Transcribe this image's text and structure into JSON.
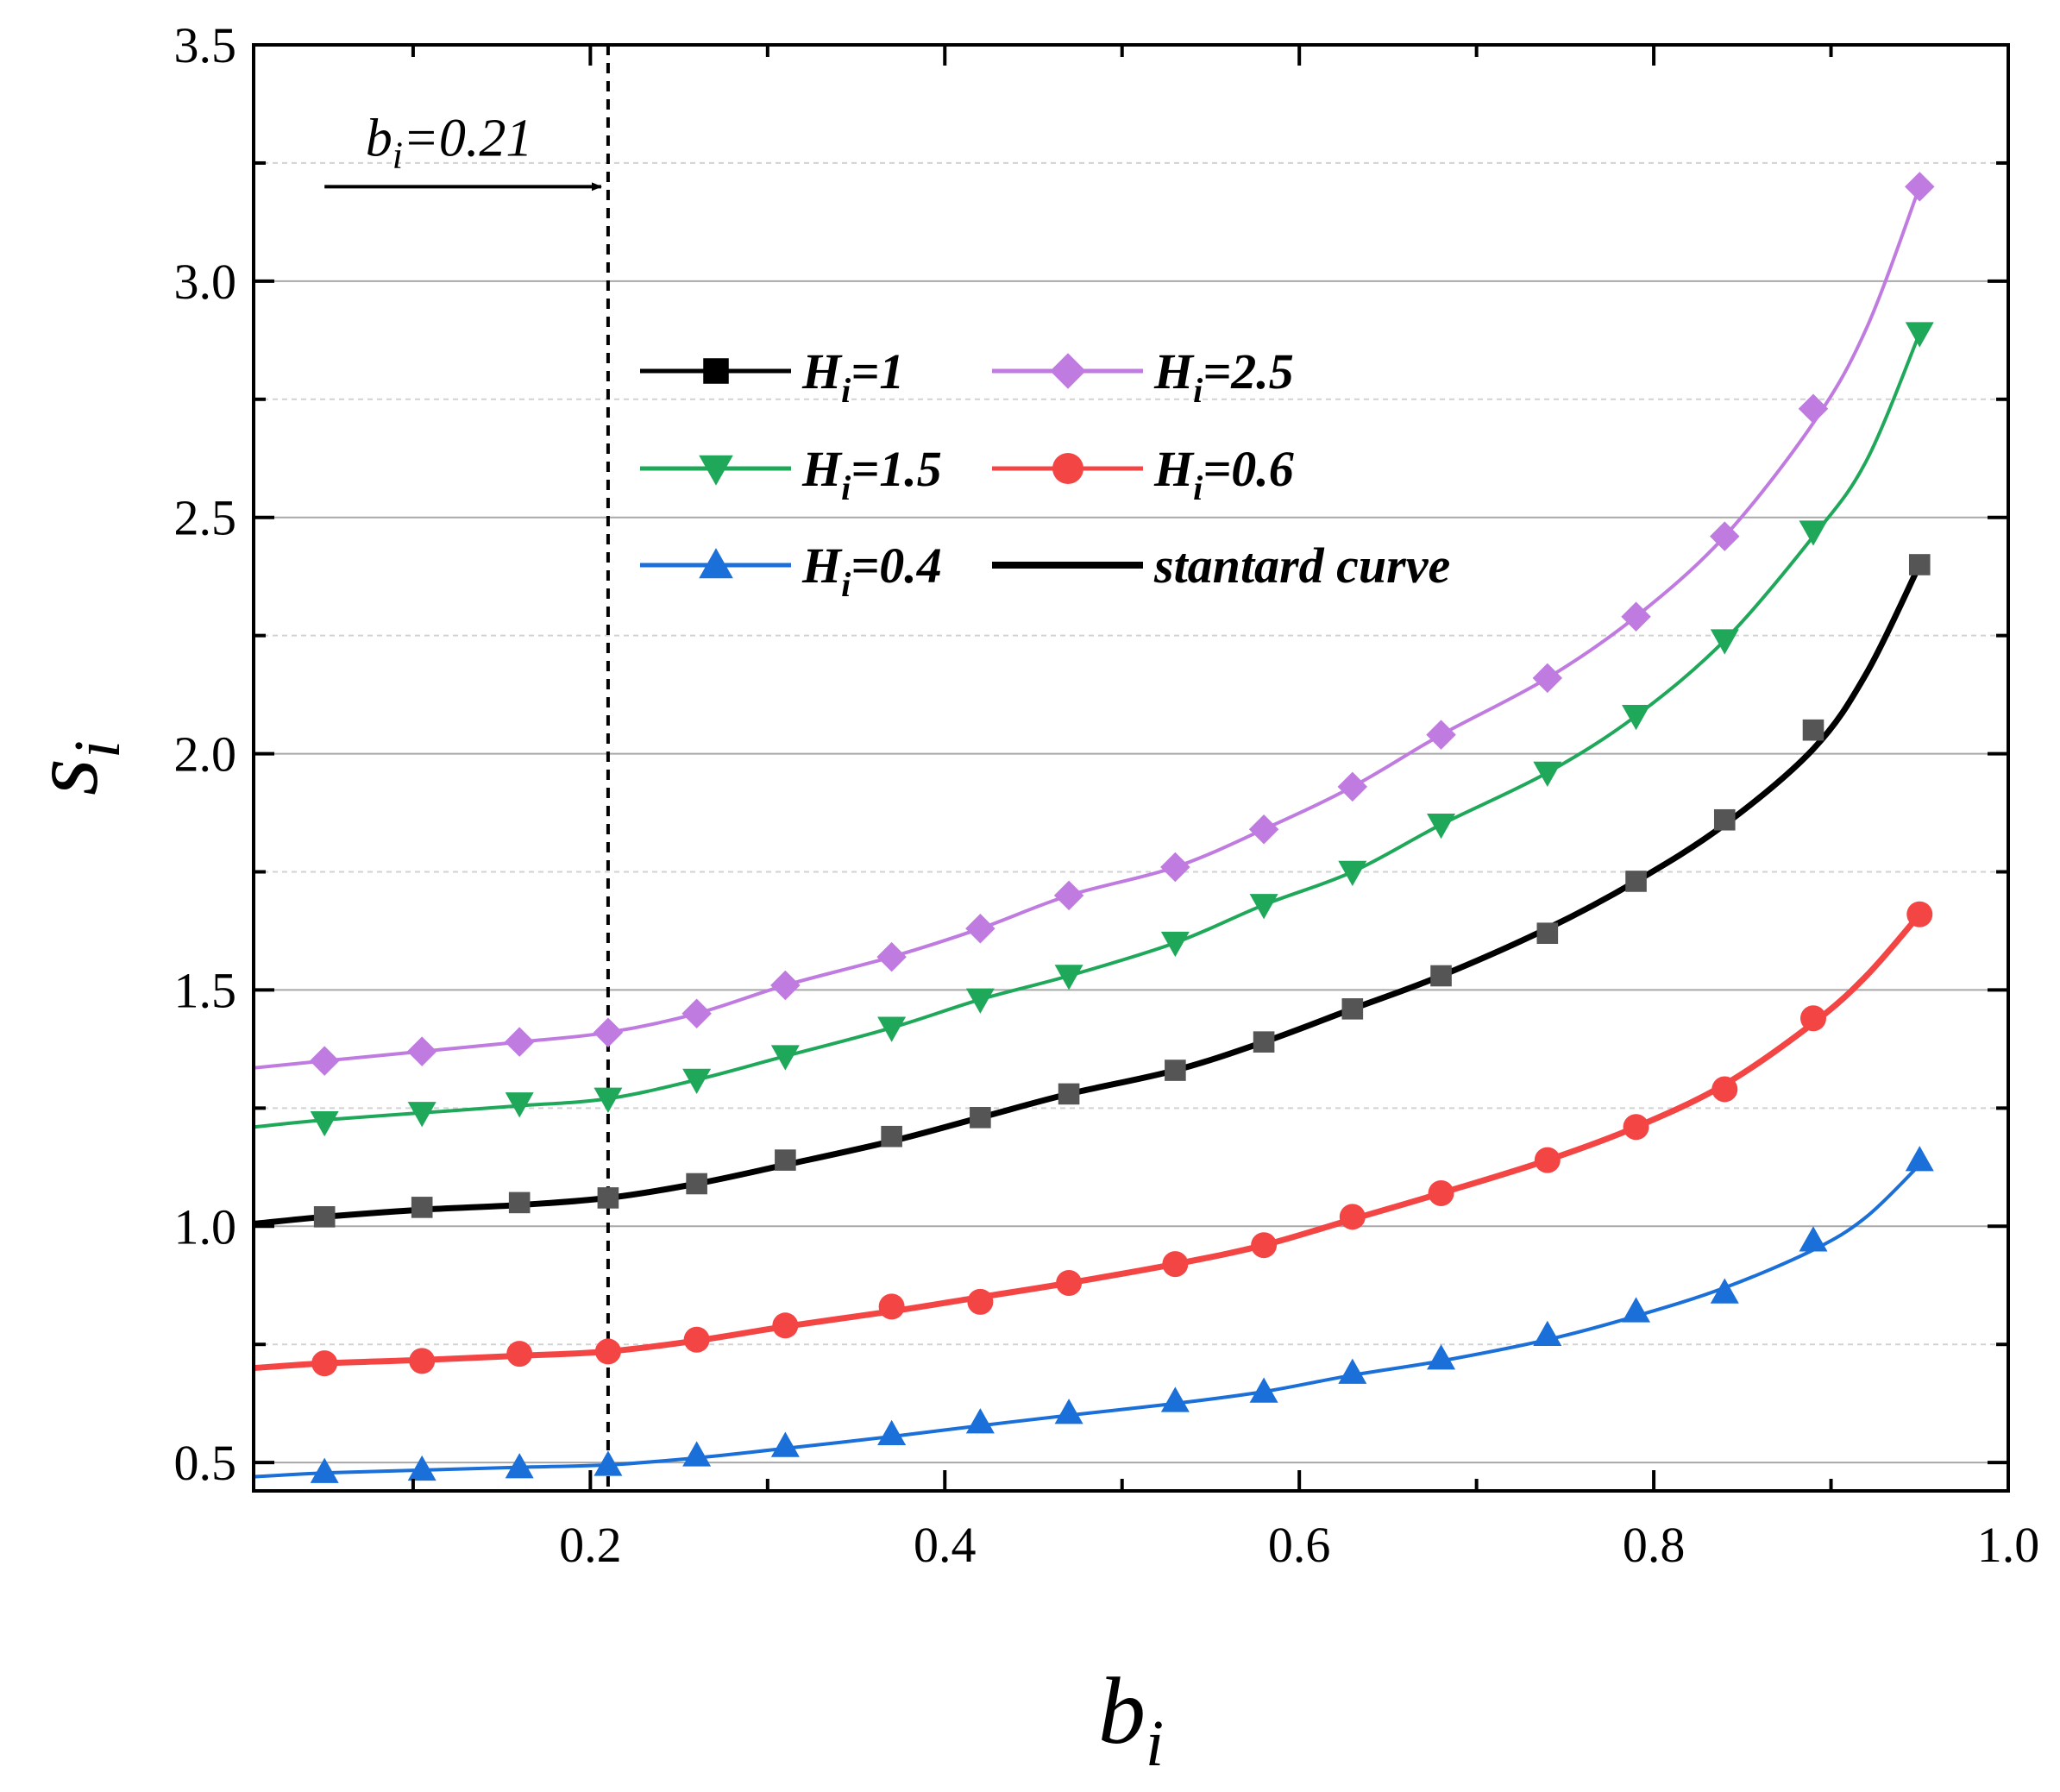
{
  "chart_data": {
    "type": "line",
    "title": "",
    "xlabel": {
      "base": "b",
      "sub": "i"
    },
    "ylabel": {
      "base": "s",
      "sub": "i"
    },
    "xlim": [
      0.01,
      1.0
    ],
    "ylim": [
      0.44,
      3.5
    ],
    "xticks": [
      0.2,
      0.4,
      0.6,
      0.8,
      1.0
    ],
    "xtick_labels": [
      "0.2",
      "0.4",
      "0.6",
      "0.8",
      "1.0"
    ],
    "yticks": [
      0.5,
      1.0,
      1.5,
      2.0,
      2.5,
      3.0,
      3.5
    ],
    "ytick_labels": [
      "0.5",
      "1.0",
      "1.5",
      "2.0",
      "2.5",
      "3.0",
      "3.5"
    ],
    "minor_grid_y": [
      0.75,
      1.25,
      1.75,
      2.25,
      2.75,
      3.25
    ],
    "grid": true,
    "legend_position": "top-center",
    "marker_x": [
      0.05,
      0.105,
      0.16,
      0.21,
      0.26,
      0.31,
      0.37,
      0.42,
      0.47,
      0.53,
      0.58,
      0.63,
      0.68,
      0.74,
      0.79,
      0.84,
      0.89,
      0.95
    ],
    "series": [
      {
        "name": "H_i=1",
        "legend_base": "H",
        "legend_sub": "i",
        "legend_rest": "=1",
        "color": "#555555",
        "marker": "square",
        "values": [
          1.02,
          1.04,
          1.05,
          1.06,
          1.09,
          1.14,
          1.19,
          1.23,
          1.28,
          1.33,
          1.39,
          1.46,
          1.53,
          1.62,
          1.73,
          1.86,
          2.05,
          2.4
        ]
      },
      {
        "name": "H_i=2.5",
        "legend_base": "H",
        "legend_sub": "i",
        "legend_rest": "=2.5",
        "color": "#c07be0",
        "marker": "diamond",
        "values": [
          1.35,
          1.37,
          1.39,
          1.41,
          1.45,
          1.51,
          1.57,
          1.63,
          1.7,
          1.76,
          1.84,
          1.93,
          2.04,
          2.16,
          2.29,
          2.46,
          2.73,
          3.2
        ]
      },
      {
        "name": "H_i=1.5",
        "legend_base": "H",
        "legend_sub": "i",
        "legend_rest": "=1.5",
        "color": "#1fa85a",
        "marker": "triangle-down",
        "values": [
          1.22,
          1.24,
          1.26,
          1.27,
          1.31,
          1.36,
          1.42,
          1.48,
          1.53,
          1.6,
          1.68,
          1.75,
          1.85,
          1.96,
          2.08,
          2.24,
          2.47,
          2.89
        ]
      },
      {
        "name": "H_i=0.6",
        "legend_base": "H",
        "legend_sub": "i",
        "legend_rest": "=0.6",
        "color": "#f44545",
        "marker": "circle",
        "values": [
          0.71,
          0.715,
          0.73,
          0.735,
          0.76,
          0.79,
          0.83,
          0.84,
          0.88,
          0.92,
          0.96,
          1.02,
          1.07,
          1.14,
          1.21,
          1.29,
          1.44,
          1.66
        ]
      },
      {
        "name": "H_i=0.4",
        "legend_base": "H",
        "legend_sub": "i",
        "legend_rest": "=0.4",
        "color": "#1a6fd8",
        "marker": "triangle-up",
        "values": [
          0.48,
          0.485,
          0.49,
          0.495,
          0.515,
          0.535,
          0.56,
          0.585,
          0.605,
          0.63,
          0.65,
          0.69,
          0.72,
          0.77,
          0.82,
          0.86,
          0.97,
          1.14
        ]
      }
    ],
    "curves": [
      {
        "name": "standard-curve",
        "color": "#000000",
        "width": 7,
        "x": [
          0.01,
          0.05,
          0.105,
          0.16,
          0.21,
          0.26,
          0.31,
          0.37,
          0.42,
          0.47,
          0.53,
          0.58,
          0.63,
          0.68,
          0.74,
          0.79,
          0.84,
          0.89,
          0.92,
          0.95
        ],
        "y": [
          1.005,
          1.02,
          1.035,
          1.045,
          1.06,
          1.09,
          1.13,
          1.18,
          1.23,
          1.28,
          1.33,
          1.39,
          1.46,
          1.53,
          1.63,
          1.73,
          1.85,
          2.01,
          2.17,
          2.4
        ]
      },
      {
        "name": "curve-Hi-2.5",
        "color": "#c07be0",
        "width": 4,
        "x": [
          0.01,
          0.05,
          0.105,
          0.16,
          0.21,
          0.26,
          0.31,
          0.37,
          0.42,
          0.47,
          0.53,
          0.58,
          0.63,
          0.68,
          0.74,
          0.79,
          0.84,
          0.89,
          0.92,
          0.95
        ],
        "y": [
          1.335,
          1.35,
          1.37,
          1.39,
          1.41,
          1.45,
          1.51,
          1.57,
          1.63,
          1.7,
          1.76,
          1.84,
          1.93,
          2.04,
          2.16,
          2.29,
          2.46,
          2.7,
          2.9,
          3.2
        ]
      },
      {
        "name": "curve-Hi-1.5",
        "color": "#1fa85a",
        "width": 4,
        "x": [
          0.01,
          0.05,
          0.105,
          0.16,
          0.21,
          0.26,
          0.31,
          0.37,
          0.42,
          0.47,
          0.53,
          0.58,
          0.63,
          0.68,
          0.74,
          0.79,
          0.84,
          0.89,
          0.92,
          0.95
        ],
        "y": [
          1.21,
          1.225,
          1.24,
          1.255,
          1.27,
          1.31,
          1.36,
          1.42,
          1.48,
          1.53,
          1.6,
          1.68,
          1.75,
          1.85,
          1.96,
          2.08,
          2.24,
          2.46,
          2.62,
          2.89
        ]
      },
      {
        "name": "curve-Hi-0.6",
        "color": "#f44545",
        "width": 7,
        "x": [
          0.01,
          0.05,
          0.105,
          0.16,
          0.21,
          0.26,
          0.31,
          0.37,
          0.42,
          0.47,
          0.53,
          0.58,
          0.63,
          0.68,
          0.74,
          0.79,
          0.84,
          0.89,
          0.92,
          0.95
        ],
        "y": [
          0.7,
          0.71,
          0.717,
          0.726,
          0.735,
          0.758,
          0.788,
          0.82,
          0.85,
          0.88,
          0.92,
          0.96,
          1.015,
          1.07,
          1.14,
          1.21,
          1.3,
          1.43,
          1.53,
          1.66
        ]
      },
      {
        "name": "curve-Hi-0.4",
        "color": "#1a6fd8",
        "width": 4,
        "x": [
          0.01,
          0.05,
          0.105,
          0.16,
          0.21,
          0.26,
          0.31,
          0.37,
          0.42,
          0.47,
          0.53,
          0.58,
          0.63,
          0.68,
          0.74,
          0.79,
          0.84,
          0.89,
          0.92,
          0.95
        ],
        "y": [
          0.47,
          0.478,
          0.484,
          0.49,
          0.495,
          0.51,
          0.53,
          0.555,
          0.578,
          0.6,
          0.625,
          0.65,
          0.685,
          0.715,
          0.76,
          0.81,
          0.87,
          0.95,
          1.02,
          1.13
        ]
      }
    ],
    "legend": [
      {
        "type": "series",
        "ref": 0
      },
      {
        "type": "series",
        "ref": 1
      },
      {
        "type": "series",
        "ref": 2
      },
      {
        "type": "series",
        "ref": 3
      },
      {
        "type": "series",
        "ref": 4
      },
      {
        "type": "line",
        "label": "stantard curve",
        "color": "#000000"
      }
    ],
    "annotation": {
      "text_base": "b",
      "text_sub": "i",
      "text_rest": "=0.21",
      "line_x": 0.21,
      "arrow_from_x": 0.05,
      "arrow_to_x": 0.21,
      "arrow_y": 3.2
    }
  }
}
